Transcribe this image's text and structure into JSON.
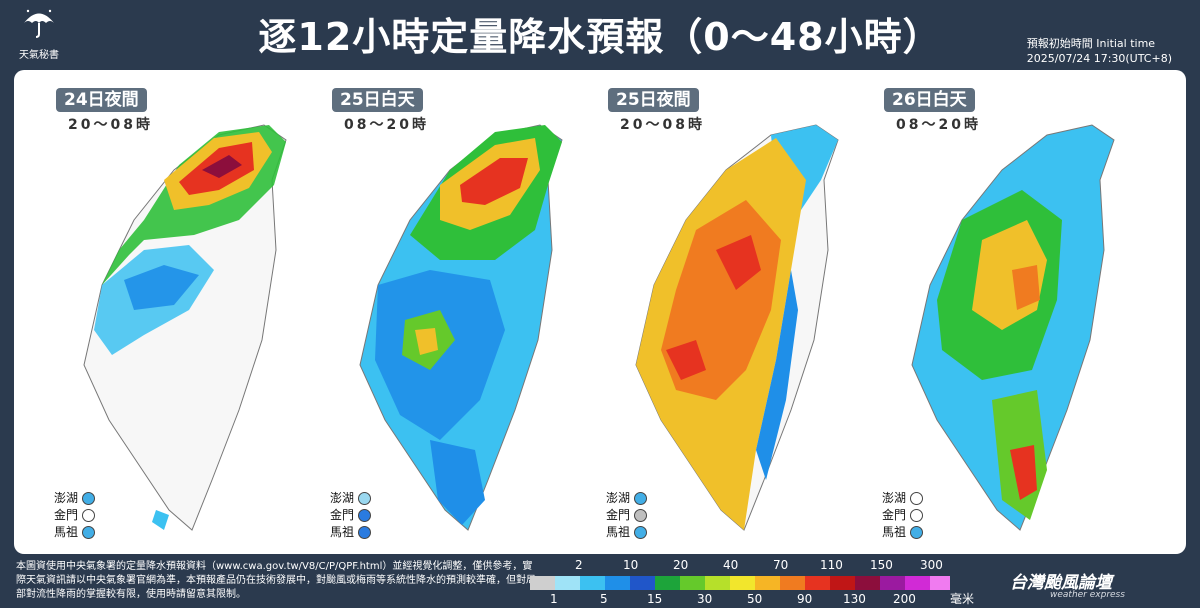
{
  "title": "逐12小時定量降水預報（0～48小時）",
  "logo_text": "天氣秘書",
  "initial_time": {
    "label": "預報初始時間 Initial time",
    "value": "2025/07/24  17:30(UTC+8)"
  },
  "maps": [
    {
      "date": "24日夜間",
      "time": "20～08時",
      "islands": [
        {
          "name": "澎湖",
          "color": "#42aee6"
        },
        {
          "name": "金門",
          "color": "#ffffff"
        },
        {
          "name": "馬祖",
          "color": "#42aee6"
        }
      ]
    },
    {
      "date": "25日白天",
      "time": "08～20時",
      "islands": [
        {
          "name": "澎湖",
          "color": "#9ad8f0"
        },
        {
          "name": "金門",
          "color": "#2a7be0"
        },
        {
          "name": "馬祖",
          "color": "#2a7be0"
        }
      ]
    },
    {
      "date": "25日夜間",
      "time": "20～08時",
      "islands": [
        {
          "name": "澎湖",
          "color": "#42aee6"
        },
        {
          "name": "金門",
          "color": "#bfbfbf"
        },
        {
          "name": "馬祖",
          "color": "#42aee6"
        }
      ]
    },
    {
      "date": "26日白天",
      "time": "08～20時",
      "islands": [
        {
          "name": "澎湖",
          "color": "#ffffff"
        },
        {
          "name": "金門",
          "color": "#ffffff"
        },
        {
          "name": "馬祖",
          "color": "#42aee6"
        }
      ]
    }
  ],
  "disclaimer": "本圖資使用中央氣象署的定量降水預報資料（www.cwa.gov.tw/V8/C/P/QPF.html）並經視覺化調整，僅供參考，實際天氣資訊請以中央氣象署官網為準，本預報產品仍在技術發展中，對颱風或梅雨等系統性降水的預測較準確，但對局部對流性降雨的掌握較有限，使用時請留意其限制。",
  "legend": {
    "top_labels": [
      "2",
      "10",
      "20",
      "40",
      "70",
      "110",
      "150",
      "300"
    ],
    "bottom_labels": [
      "1",
      "5",
      "15",
      "30",
      "50",
      "90",
      "130",
      "200"
    ],
    "unit": "毫米",
    "colors": [
      "#cfcfcf",
      "#9fe3f7",
      "#3cc1f1",
      "#1f8fe8",
      "#2056c9",
      "#1da43a",
      "#65c92b",
      "#b6e02a",
      "#f2e62c",
      "#f6b525",
      "#f07b20",
      "#e63320",
      "#c01616",
      "#8c0e3c",
      "#9b1aa0",
      "#d12ad6",
      "#f07bf0"
    ]
  },
  "brand": {
    "name": "台灣颱風論壇",
    "sub": "weather express"
  }
}
